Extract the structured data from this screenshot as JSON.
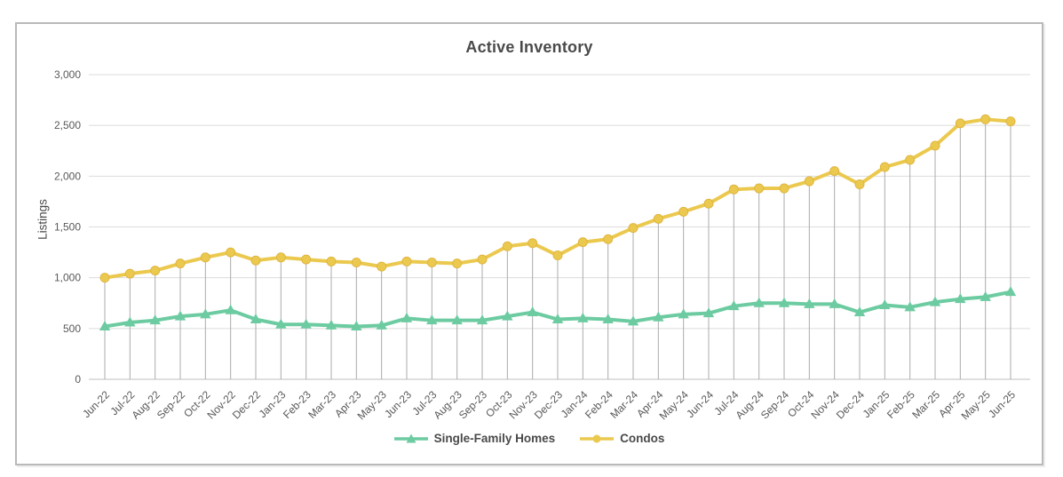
{
  "chart_data": {
    "type": "line",
    "title": "Active Inventory",
    "ylabel": "Listings",
    "xlabel": "",
    "ylim": [
      0,
      3000
    ],
    "ytick_interval": 500,
    "ytick_labels": [
      "0",
      "500",
      "1,000",
      "1,500",
      "2,000",
      "2,500",
      "3,000"
    ],
    "grid": "horizontal",
    "droplines": true,
    "legend_position": "bottom-center",
    "categories": [
      "Jun-22",
      "Jul-22",
      "Aug-22",
      "Sep-22",
      "Oct-22",
      "Nov-22",
      "Dec-22",
      "Jan-23",
      "Feb-23",
      "Mar-23",
      "Apr-23",
      "May-23",
      "Jun-23",
      "Jul-23",
      "Aug-23",
      "Sep-23",
      "Oct-23",
      "Nov-23",
      "Dec-23",
      "Jan-24",
      "Feb-24",
      "Mar-24",
      "Apr-24",
      "May-24",
      "Jun-24",
      "Jul-24",
      "Aug-24",
      "Sep-24",
      "Oct-24",
      "Nov-24",
      "Dec-24",
      "Jan-25",
      "Feb-25",
      "Mar-25",
      "Apr-25",
      "May-25",
      "Jun-25"
    ],
    "series": [
      {
        "name": "Single-Family Homes",
        "marker": "triangle",
        "color": "#6CCBA1",
        "values": [
          520,
          560,
          580,
          620,
          640,
          680,
          590,
          540,
          540,
          530,
          520,
          530,
          600,
          580,
          580,
          580,
          620,
          660,
          590,
          600,
          590,
          570,
          610,
          640,
          650,
          720,
          750,
          750,
          740,
          740,
          660,
          730,
          710,
          760,
          790,
          810,
          860
        ]
      },
      {
        "name": "Condos",
        "marker": "circle",
        "color": "#EBC94F",
        "values": [
          1000,
          1040,
          1070,
          1140,
          1200,
          1250,
          1170,
          1200,
          1180,
          1160,
          1150,
          1110,
          1160,
          1150,
          1140,
          1180,
          1310,
          1340,
          1220,
          1350,
          1380,
          1490,
          1580,
          1650,
          1730,
          1870,
          1880,
          1880,
          1950,
          2050,
          1920,
          2090,
          2160,
          2300,
          2520,
          2560,
          2540
        ]
      }
    ]
  },
  "colors": {
    "title_text": "#4A4A4A",
    "axis_text": "#595959",
    "gridline": "#DCDCDC",
    "axis_line": "#BFBFBF",
    "dropline": "#ABABAB",
    "frame_border": "#B9B9B9",
    "marker_edge_condos": "#E0B540"
  }
}
